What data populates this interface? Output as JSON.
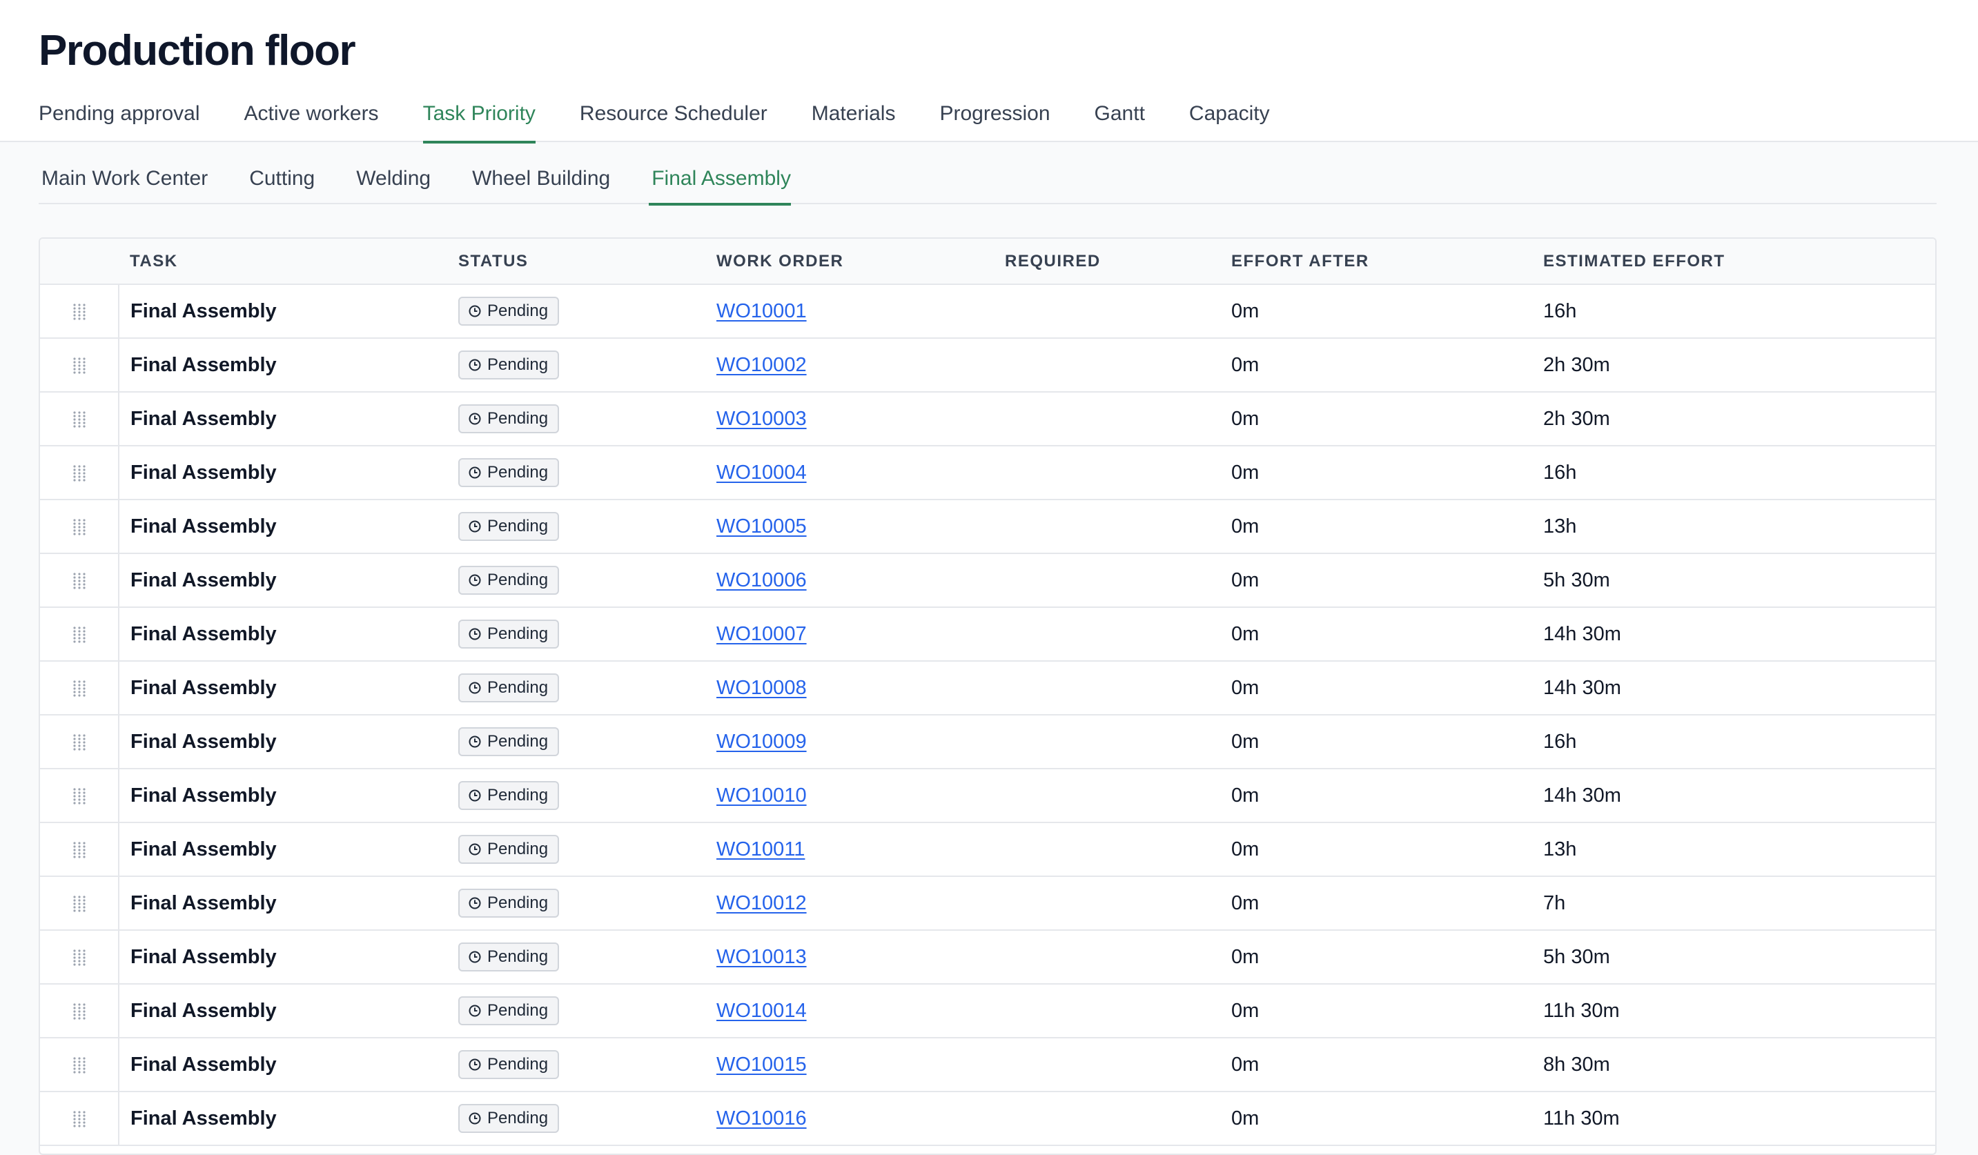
{
  "page": {
    "title": "Production floor"
  },
  "main_tabs": [
    {
      "label": "Pending approval",
      "active": false
    },
    {
      "label": "Active workers",
      "active": false
    },
    {
      "label": "Task Priority",
      "active": true
    },
    {
      "label": "Resource Scheduler",
      "active": false
    },
    {
      "label": "Materials",
      "active": false
    },
    {
      "label": "Progression",
      "active": false
    },
    {
      "label": "Gantt",
      "active": false
    },
    {
      "label": "Capacity",
      "active": false
    }
  ],
  "sub_tabs": [
    {
      "label": "Main Work Center",
      "active": false
    },
    {
      "label": "Cutting",
      "active": false
    },
    {
      "label": "Welding",
      "active": false
    },
    {
      "label": "Wheel Building",
      "active": false
    },
    {
      "label": "Final Assembly",
      "active": true
    }
  ],
  "table": {
    "columns": [
      "TASK",
      "STATUS",
      "WORK ORDER",
      "REQUIRED",
      "EFFORT AFTER",
      "ESTIMATED EFFORT"
    ],
    "status_icon": "clock-icon",
    "drag_icon": "drag-handle-icon",
    "rows": [
      {
        "task": "Final Assembly",
        "status": "Pending",
        "work_order": "WO10001",
        "required": "",
        "effort_after": "0m",
        "estimated_effort": "16h"
      },
      {
        "task": "Final Assembly",
        "status": "Pending",
        "work_order": "WO10002",
        "required": "",
        "effort_after": "0m",
        "estimated_effort": "2h 30m"
      },
      {
        "task": "Final Assembly",
        "status": "Pending",
        "work_order": "WO10003",
        "required": "",
        "effort_after": "0m",
        "estimated_effort": "2h 30m"
      },
      {
        "task": "Final Assembly",
        "status": "Pending",
        "work_order": "WO10004",
        "required": "",
        "effort_after": "0m",
        "estimated_effort": "16h"
      },
      {
        "task": "Final Assembly",
        "status": "Pending",
        "work_order": "WO10005",
        "required": "",
        "effort_after": "0m",
        "estimated_effort": "13h"
      },
      {
        "task": "Final Assembly",
        "status": "Pending",
        "work_order": "WO10006",
        "required": "",
        "effort_after": "0m",
        "estimated_effort": "5h 30m"
      },
      {
        "task": "Final Assembly",
        "status": "Pending",
        "work_order": "WO10007",
        "required": "",
        "effort_after": "0m",
        "estimated_effort": "14h 30m"
      },
      {
        "task": "Final Assembly",
        "status": "Pending",
        "work_order": "WO10008",
        "required": "",
        "effort_after": "0m",
        "estimated_effort": "14h 30m"
      },
      {
        "task": "Final Assembly",
        "status": "Pending",
        "work_order": "WO10009",
        "required": "",
        "effort_after": "0m",
        "estimated_effort": "16h"
      },
      {
        "task": "Final Assembly",
        "status": "Pending",
        "work_order": "WO10010",
        "required": "",
        "effort_after": "0m",
        "estimated_effort": "14h 30m"
      },
      {
        "task": "Final Assembly",
        "status": "Pending",
        "work_order": "WO10011",
        "required": "",
        "effort_after": "0m",
        "estimated_effort": "13h"
      },
      {
        "task": "Final Assembly",
        "status": "Pending",
        "work_order": "WO10012",
        "required": "",
        "effort_after": "0m",
        "estimated_effort": "7h"
      },
      {
        "task": "Final Assembly",
        "status": "Pending",
        "work_order": "WO10013",
        "required": "",
        "effort_after": "0m",
        "estimated_effort": "5h 30m"
      },
      {
        "task": "Final Assembly",
        "status": "Pending",
        "work_order": "WO10014",
        "required": "",
        "effort_after": "0m",
        "estimated_effort": "11h 30m"
      },
      {
        "task": "Final Assembly",
        "status": "Pending",
        "work_order": "WO10015",
        "required": "",
        "effort_after": "0m",
        "estimated_effort": "8h 30m"
      },
      {
        "task": "Final Assembly",
        "status": "Pending",
        "work_order": "WO10016",
        "required": "",
        "effort_after": "0m",
        "estimated_effort": "11h 30m"
      }
    ]
  },
  "colors": {
    "accent": "#2f855a",
    "link": "#2563eb",
    "border": "#e5e7eb",
    "badge_bg": "#f3f4f6"
  }
}
